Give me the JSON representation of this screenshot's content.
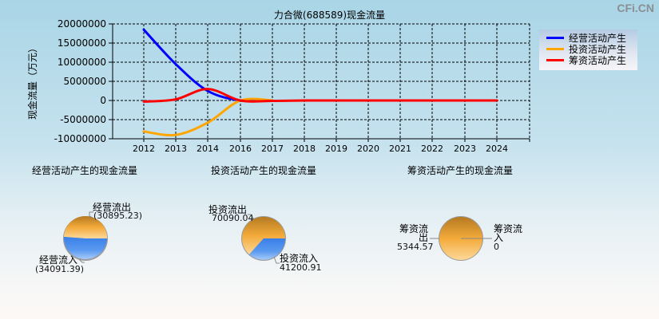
{
  "header": {
    "title": "力合微(688589)现金流量",
    "watermark": "CFi.CN"
  },
  "chart_data": [
    {
      "type": "line",
      "title": "力合微(688589)现金流量",
      "xlabel": "",
      "ylabel": "现金流量（万元）",
      "categories": [
        "2012",
        "2013",
        "2014",
        "2016",
        "2017",
        "2018",
        "2019",
        "2020",
        "2021",
        "2022",
        "2023",
        "2024"
      ],
      "ylim": [
        -10000000,
        20000000
      ],
      "yticks": [
        "20000000",
        "15000000",
        "10000000",
        "5000000",
        "0",
        "-5000000",
        "-10000000"
      ],
      "grid": true,
      "legend_position": "right-top",
      "series": [
        {
          "name": "经营活动产生",
          "color": "#0000ff",
          "values": [
            18500000,
            9500000,
            2500000,
            0,
            0,
            0,
            0,
            0,
            0,
            0,
            0,
            0
          ]
        },
        {
          "name": "投资活动产生",
          "color": "#ffa500",
          "values": [
            -8100000,
            -9000000,
            -5800000,
            0,
            0,
            0,
            0,
            0,
            0,
            0,
            0,
            0
          ]
        },
        {
          "name": "筹资活动产生",
          "color": "#ff0000",
          "values": [
            -300000,
            300000,
            3000000,
            0,
            -100000,
            0,
            0,
            0,
            0,
            0,
            0,
            0
          ]
        }
      ]
    },
    {
      "type": "pie",
      "title": "经营活动产生的现金流量",
      "slices": [
        {
          "label": "经营流出",
          "value_text": "(30895.23)",
          "value": 30895.23,
          "color": "#f0a030"
        },
        {
          "label": "经营流入",
          "value_text": "(34091.39)",
          "value": 34091.39,
          "color": "#4a8ef0"
        }
      ]
    },
    {
      "type": "pie",
      "title": "投资活动产生的现金流量",
      "slices": [
        {
          "label": "投资流出",
          "value_text": "70090.04",
          "value": 70090.04,
          "color": "#f0a030"
        },
        {
          "label": "投资流入",
          "value_text": "41200.91",
          "value": 41200.91,
          "color": "#4a8ef0"
        }
      ]
    },
    {
      "type": "pie",
      "title": "筹资活动产生的现金流量",
      "slices": [
        {
          "label": "筹资流出",
          "value_text": "5344.57",
          "value": 5344.57,
          "color": "#f0a030"
        },
        {
          "label": "筹资流入",
          "value_text": "0",
          "value": 0,
          "color": "#4a8ef0"
        }
      ]
    }
  ],
  "legend": {
    "items": [
      {
        "label": "经营活动产生",
        "color": "#0000ff"
      },
      {
        "label": "投资活动产生",
        "color": "#ffa500"
      },
      {
        "label": "筹资活动产生",
        "color": "#ff0000"
      }
    ]
  },
  "pies": {
    "operating": {
      "title": "经营活动产生的现金流量",
      "out_label": "经营流出",
      "out_value": "(30895.23)",
      "in_label": "经营流入",
      "in_value": "(34091.39)"
    },
    "investing": {
      "title": "投资活动产生的现金流量",
      "out_label": "投资流出",
      "out_value": "70090.04",
      "in_label": "投资流入",
      "in_value": "41200.91"
    },
    "financing": {
      "title": "筹资活动产生的现金流量",
      "out_label_line1": "筹资流",
      "out_label_line2": "出",
      "out_value": "5344.57",
      "in_label_line1": "筹资流",
      "in_label_line2": "入",
      "in_value": "0"
    }
  }
}
